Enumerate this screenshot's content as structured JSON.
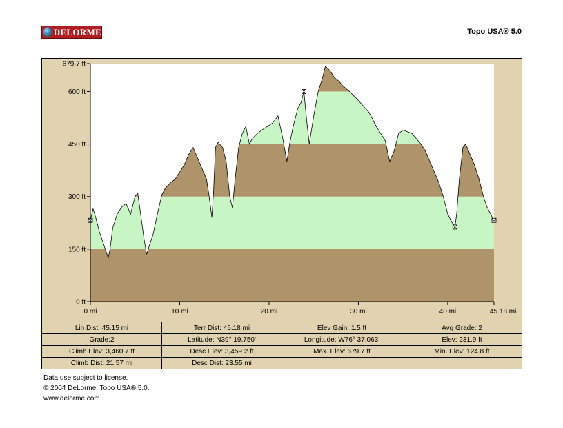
{
  "header": {
    "logo_text": "DELORME",
    "product": "Topo USA® 5.0"
  },
  "chart_data": {
    "type": "area",
    "title": "",
    "xlabel": "",
    "ylabel": "",
    "x_unit": "mi",
    "y_unit": "ft",
    "xlim": [
      0,
      45.18
    ],
    "ylim": [
      0,
      679.7
    ],
    "x_ticks": [
      0,
      10,
      20,
      30,
      40,
      45.18
    ],
    "x_tick_labels": [
      "0 mi",
      "10 mi",
      "20 mi",
      "30 mi",
      "40 mi",
      "45.18 mi"
    ],
    "y_ticks": [
      0,
      150,
      300,
      450,
      600,
      679.7
    ],
    "y_tick_labels": [
      "0 ft",
      "150 ft",
      "300 ft",
      "450 ft",
      "600 ft",
      "679.7 ft"
    ],
    "band_colors": [
      "#ae9468",
      "#c8f5c4"
    ],
    "plot_background": "#ffffff",
    "frame_color": "#e1d3b0",
    "line_color": "#000000",
    "series": [
      {
        "x": [
          0,
          0.3,
          0.6,
          1.0,
          1.4,
          1.8,
          2.0,
          2.2,
          2.5,
          3.0,
          3.5,
          4.0,
          4.5,
          5.0,
          5.3,
          5.6,
          6.0,
          6.3,
          6.6,
          7.0,
          7.5,
          8.0,
          8.3,
          8.6,
          9.0,
          9.5,
          10.0,
          10.5,
          11.0,
          11.5,
          12.0,
          12.5,
          13.0,
          13.3,
          13.6,
          13.8,
          14.0,
          14.3,
          14.8,
          15.2,
          15.6,
          15.9,
          16.2,
          16.6,
          17.0,
          17.4,
          17.8,
          18.0,
          18.3,
          18.7,
          19.2,
          19.8,
          20.4,
          21.0,
          21.5,
          22.0,
          22.3,
          22.7,
          23.2,
          23.6,
          23.9,
          24.2,
          24.5,
          25.0,
          25.5,
          26.0,
          26.3,
          26.8,
          27.3,
          27.8,
          28.3,
          29.0,
          29.8,
          30.5,
          31.2,
          32.0,
          33.0,
          33.5,
          34.0,
          34.5,
          35.0,
          36.0,
          37.0,
          37.5,
          38.0,
          38.5,
          39.0,
          39.5,
          40.0,
          40.4,
          40.8,
          41.0,
          41.3,
          41.7,
          42.0,
          42.5,
          43.0,
          43.5,
          44.0,
          44.4,
          44.8,
          45.0,
          45.18
        ],
        "y": [
          232,
          265,
          240,
          200,
          170,
          140,
          125,
          150,
          210,
          250,
          270,
          280,
          250,
          300,
          310,
          255,
          180,
          135,
          160,
          190,
          250,
          305,
          320,
          330,
          340,
          350,
          370,
          390,
          420,
          440,
          410,
          380,
          350,
          300,
          240,
          320,
          440,
          455,
          440,
          400,
          300,
          268,
          350,
          440,
          480,
          500,
          450,
          460,
          470,
          480,
          490,
          500,
          510,
          530,
          470,
          400,
          450,
          500,
          550,
          570,
          600,
          520,
          450,
          530,
          600,
          640,
          672,
          660,
          640,
          630,
          615,
          600,
          580,
          560,
          540,
          500,
          460,
          400,
          430,
          480,
          490,
          480,
          450,
          430,
          400,
          370,
          340,
          300,
          250,
          230,
          213,
          250,
          350,
          440,
          450,
          420,
          390,
          350,
          300,
          270,
          250,
          240,
          232
        ]
      }
    ],
    "markers": [
      {
        "x": 0,
        "y": 232
      },
      {
        "x": 23.9,
        "y": 600
      },
      {
        "x": 40.8,
        "y": 213
      },
      {
        "x": 45.18,
        "y": 232
      }
    ]
  },
  "stats": [
    [
      "Lin Dist: 45.15 mi",
      "Terr Dist: 45.18 mi",
      "Elev Gain: 1.5 ft",
      "Avg Grade: 2"
    ],
    [
      "Grade:2",
      "Latitude: N39° 19.750'",
      "Longitude: W76° 37.063'",
      "Elev: 231.9 ft"
    ],
    [
      "Climb Elev: 3,460.7 ft",
      "Desc Elev: 3,459.2 ft",
      "Max. Elev: 679.7 ft",
      "Min. Elev: 124.8 ft"
    ],
    [
      "Climb Dist: 21.57 mi",
      "Desc Dist: 23.55 mi",
      "",
      ""
    ]
  ],
  "footer": {
    "license": "Data use subject to license.",
    "copyright": "© 2004 DeLorme. Topo USA® 5.0.",
    "url": "www.delorme.com"
  }
}
